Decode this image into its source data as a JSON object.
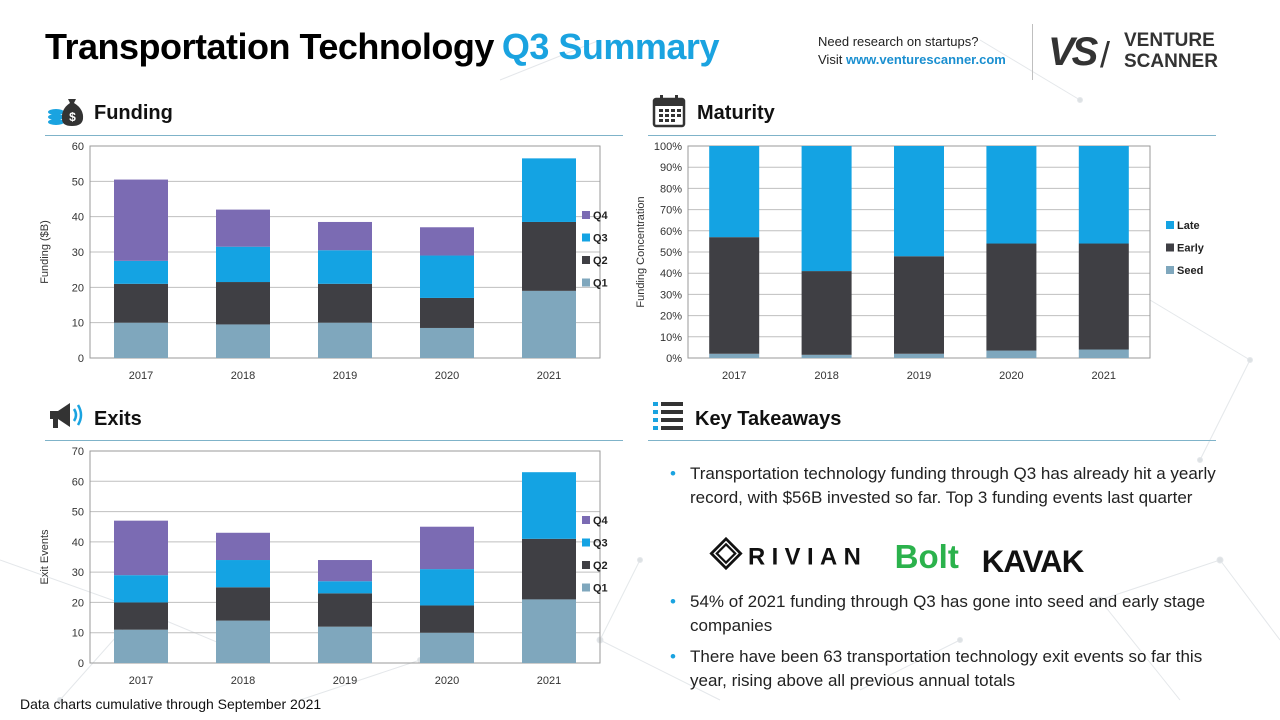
{
  "header": {
    "title_main": "Transportation Technology",
    "title_accent": "Q3 Summary",
    "research_line1": "Need research on startups?",
    "research_visit": "Visit",
    "research_url": "www.venturescanner.com",
    "logo_mark": "VS",
    "logo_name_line1": "VENTURE",
    "logo_name_line2": "SCANNER"
  },
  "sections": {
    "funding": "Funding",
    "maturity": "Maturity",
    "exits": "Exits",
    "takeaways": "Key Takeaways"
  },
  "colors": {
    "q1": "#7fa7bd",
    "q2": "#3f3f44",
    "q3": "#14a3e3",
    "q4": "#7b6bb3",
    "accent": "#1aa3e0"
  },
  "chart_data": [
    {
      "id": "funding",
      "type": "bar",
      "stacked": true,
      "categories": [
        "2017",
        "2018",
        "2019",
        "2020",
        "2021"
      ],
      "series": [
        {
          "name": "Q1",
          "values": [
            10,
            9.5,
            10,
            8.5,
            19
          ]
        },
        {
          "name": "Q2",
          "values": [
            11,
            12,
            11,
            8.5,
            19.5
          ]
        },
        {
          "name": "Q3",
          "values": [
            6.5,
            10,
            9.5,
            12,
            18
          ]
        },
        {
          "name": "Q4",
          "values": [
            23,
            10.5,
            8,
            8,
            0
          ]
        }
      ],
      "ylabel": "Funding ($B)",
      "ylim": [
        0,
        60
      ],
      "yticks": [
        "0",
        "10",
        "20",
        "30",
        "40",
        "50",
        "60"
      ],
      "legend_order": [
        "Q4",
        "Q3",
        "Q2",
        "Q1"
      ],
      "legend": "right",
      "grid": true
    },
    {
      "id": "maturity",
      "type": "bar",
      "stacked": true,
      "categories": [
        "2017",
        "2018",
        "2019",
        "2020",
        "2021"
      ],
      "series": [
        {
          "name": "Seed",
          "values": [
            2,
            1.5,
            2,
            3.5,
            4
          ]
        },
        {
          "name": "Early",
          "values": [
            55,
            39.5,
            46,
            50.5,
            50
          ]
        },
        {
          "name": "Late",
          "values": [
            43,
            59,
            52,
            46,
            46
          ]
        }
      ],
      "ylabel": "Funding Concentration",
      "ylim": [
        0,
        100
      ],
      "yticks": [
        "0%",
        "10%",
        "20%",
        "30%",
        "40%",
        "50%",
        "60%",
        "70%",
        "80%",
        "90%",
        "100%"
      ],
      "legend_order": [
        "Late",
        "Early",
        "Seed"
      ],
      "legend": "right",
      "grid": true
    },
    {
      "id": "exits",
      "type": "bar",
      "stacked": true,
      "categories": [
        "2017",
        "2018",
        "2019",
        "2020",
        "2021"
      ],
      "series": [
        {
          "name": "Q1",
          "values": [
            11,
            14,
            12,
            10,
            21
          ]
        },
        {
          "name": "Q2",
          "values": [
            9,
            11,
            11,
            9,
            20
          ]
        },
        {
          "name": "Q3",
          "values": [
            9,
            9,
            4,
            12,
            22
          ]
        },
        {
          "name": "Q4",
          "values": [
            18,
            9,
            7,
            14,
            0
          ]
        }
      ],
      "ylabel": "Exit Events",
      "ylim": [
        0,
        70
      ],
      "yticks": [
        "0",
        "10",
        "20",
        "30",
        "40",
        "50",
        "60",
        "70"
      ],
      "legend_order": [
        "Q4",
        "Q3",
        "Q2",
        "Q1"
      ],
      "legend": "right",
      "grid": true
    }
  ],
  "takeaways": {
    "items": [
      "Transportation technology funding through Q3 has already hit a yearly record, with $56B invested so far. Top 3 funding events last quarter",
      "54% of 2021 funding through Q3 has gone into seed and early stage companies",
      "There have been 63 transportation technology exit events so far this year, rising above all previous annual totals"
    ],
    "logos": [
      "RIVIAN",
      "Bolt",
      "KAVAK"
    ]
  },
  "footer": "Data charts cumulative through September 2021"
}
